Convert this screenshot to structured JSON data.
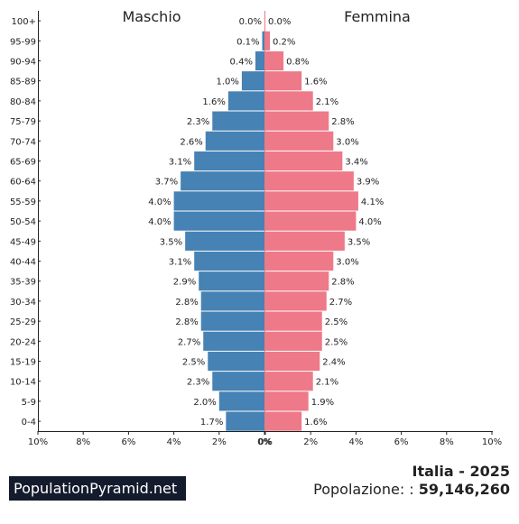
{
  "chart_data": {
    "type": "bar",
    "orientation": "horizontal",
    "left_label": "Maschio",
    "right_label": "Femmina",
    "categories": [
      "100+",
      "95-99",
      "90-94",
      "85-89",
      "80-84",
      "75-79",
      "70-74",
      "65-69",
      "60-64",
      "55-59",
      "50-54",
      "45-49",
      "40-44",
      "35-39",
      "30-34",
      "25-29",
      "20-24",
      "15-19",
      "10-14",
      "5-9",
      "0-4"
    ],
    "series": [
      {
        "name": "Maschio",
        "color": "#4682b4",
        "values": [
          0.0,
          0.1,
          0.4,
          1.0,
          1.6,
          2.3,
          2.6,
          3.1,
          3.7,
          4.0,
          4.0,
          3.5,
          3.1,
          2.9,
          2.8,
          2.8,
          2.7,
          2.5,
          2.3,
          2.0,
          1.7
        ],
        "labels": [
          "0.0%",
          "0.1%",
          "0.4%",
          "1.0%",
          "1.6%",
          "2.3%",
          "2.6%",
          "3.1%",
          "3.7%",
          "4.0%",
          "4.0%",
          "3.5%",
          "3.1%",
          "2.9%",
          "2.8%",
          "2.8%",
          "2.7%",
          "2.5%",
          "2.3%",
          "2.0%",
          "1.7%"
        ]
      },
      {
        "name": "Femmina",
        "color": "#ee7989",
        "values": [
          0.0,
          0.2,
          0.8,
          1.6,
          2.1,
          2.8,
          3.0,
          3.4,
          3.9,
          4.1,
          4.0,
          3.5,
          3.0,
          2.8,
          2.7,
          2.5,
          2.5,
          2.4,
          2.1,
          1.9,
          1.6
        ],
        "labels": [
          "0.0%",
          "0.2%",
          "0.8%",
          "1.6%",
          "2.1%",
          "2.8%",
          "3.0%",
          "3.4%",
          "3.9%",
          "4.1%",
          "4.0%",
          "3.5%",
          "3.0%",
          "2.8%",
          "2.7%",
          "2.5%",
          "2.5%",
          "2.4%",
          "2.1%",
          "1.9%",
          "1.6%"
        ]
      }
    ],
    "xlim": [
      -10,
      10
    ],
    "x_ticks_left": [
      "10%",
      "8%",
      "6%",
      "4%",
      "2%",
      "0%"
    ],
    "x_ticks_right": [
      "0%",
      "2%",
      "4%",
      "6%",
      "8%",
      "10%"
    ],
    "grid": false
  },
  "footer": {
    "brand": "PopulationPyramid.net",
    "title": "Italia - 2025",
    "population_label": "Popolazione: :",
    "population_value": "59,146,260"
  }
}
